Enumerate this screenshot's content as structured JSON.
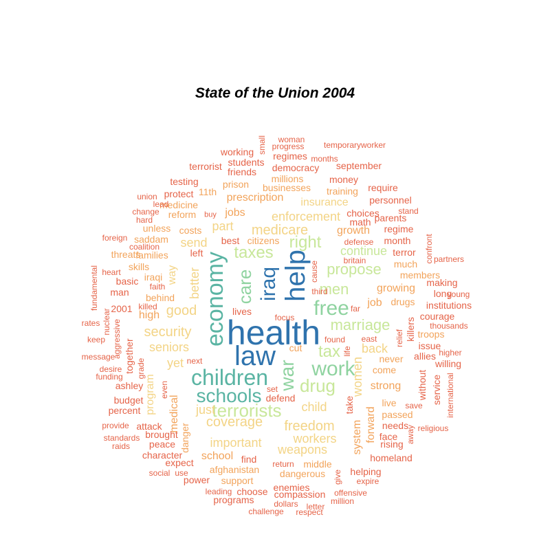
{
  "title": "State of the Union 2004",
  "palette": {
    "deep_blue": "#2f73ad",
    "teal": "#5ab4a3",
    "green": "#8fd3a0",
    "light_green": "#c8e79a",
    "yellow": "#f3d486",
    "orange": "#f2a35a",
    "red_orange": "#e56348"
  },
  "words": [
    "health",
    "help",
    "law",
    "economy",
    "iraq",
    "children",
    "work",
    "free",
    "care",
    "war",
    "schools",
    "drug",
    "tax",
    "terrorists",
    "taxes",
    "men",
    "marriage",
    "right",
    "propose",
    "medicare",
    "continue",
    "freedom",
    "coverage",
    "security",
    "seniors",
    "good",
    "women",
    "enforcement",
    "child",
    "workers",
    "better",
    "important",
    "weapons",
    "insurance",
    "prescription",
    "back",
    "part",
    "growing",
    "job",
    "way",
    "just",
    "yet",
    "program",
    "school",
    "strong",
    "send",
    "jobs",
    "growth",
    "medical",
    "live",
    "costs",
    "unless",
    "never",
    "come",
    "system",
    "forward",
    "afghanistan",
    "behind",
    "high",
    "passed",
    "members",
    "troops",
    "drugs",
    "much",
    "cut",
    "even",
    "found",
    "east",
    "killers",
    "without",
    "dangerous",
    "middle",
    "danger",
    "saddam",
    "families",
    "iraqi",
    "skills",
    "together",
    "threats",
    "citizens",
    "homeland",
    "face",
    "needs",
    "month",
    "terror",
    "regime",
    "parents",
    "personnel",
    "require",
    "money",
    "training",
    "businesses",
    "millions",
    "democracy",
    "regimes",
    "september",
    "students",
    "friends",
    "working",
    "terrorist",
    "testing",
    "protect",
    "11th",
    "prison",
    "reform",
    "medicine",
    "buy",
    "best",
    "left",
    "choices",
    "math",
    "helping",
    "making",
    "long",
    "institutions",
    "courage",
    "thousands",
    "issue",
    "allies",
    "willing",
    "service",
    "attack",
    "brought",
    "peace",
    "expect",
    "character",
    "support",
    "find",
    "choose",
    "power",
    "programs",
    "enemies",
    "compassion",
    "return",
    "rising",
    "save",
    "basic",
    "man",
    "2001",
    "keep",
    "ashley",
    "budget",
    "percent",
    "defend",
    "set",
    "take",
    "lives",
    "far",
    "third",
    "focus",
    "cause",
    "britain",
    "defense",
    "relief",
    "life",
    "next",
    "grade",
    "desire",
    "funding",
    "message",
    "aggressive",
    "nuclear",
    "rates",
    "fundamental",
    "heart",
    "faith",
    "killed",
    "coalition",
    "foreign",
    "change",
    "union",
    "lead",
    "hard",
    "stand",
    "confront",
    "partners",
    "young",
    "higher",
    "international",
    "religious",
    "away",
    "raids",
    "standards",
    "provide",
    "social",
    "use",
    "leading",
    "dollars",
    "letter",
    "respect",
    "challenge",
    "million",
    "expire",
    "offensive",
    "give",
    "small",
    "woman",
    "progress",
    "temporaryworker",
    "months"
  ]
}
